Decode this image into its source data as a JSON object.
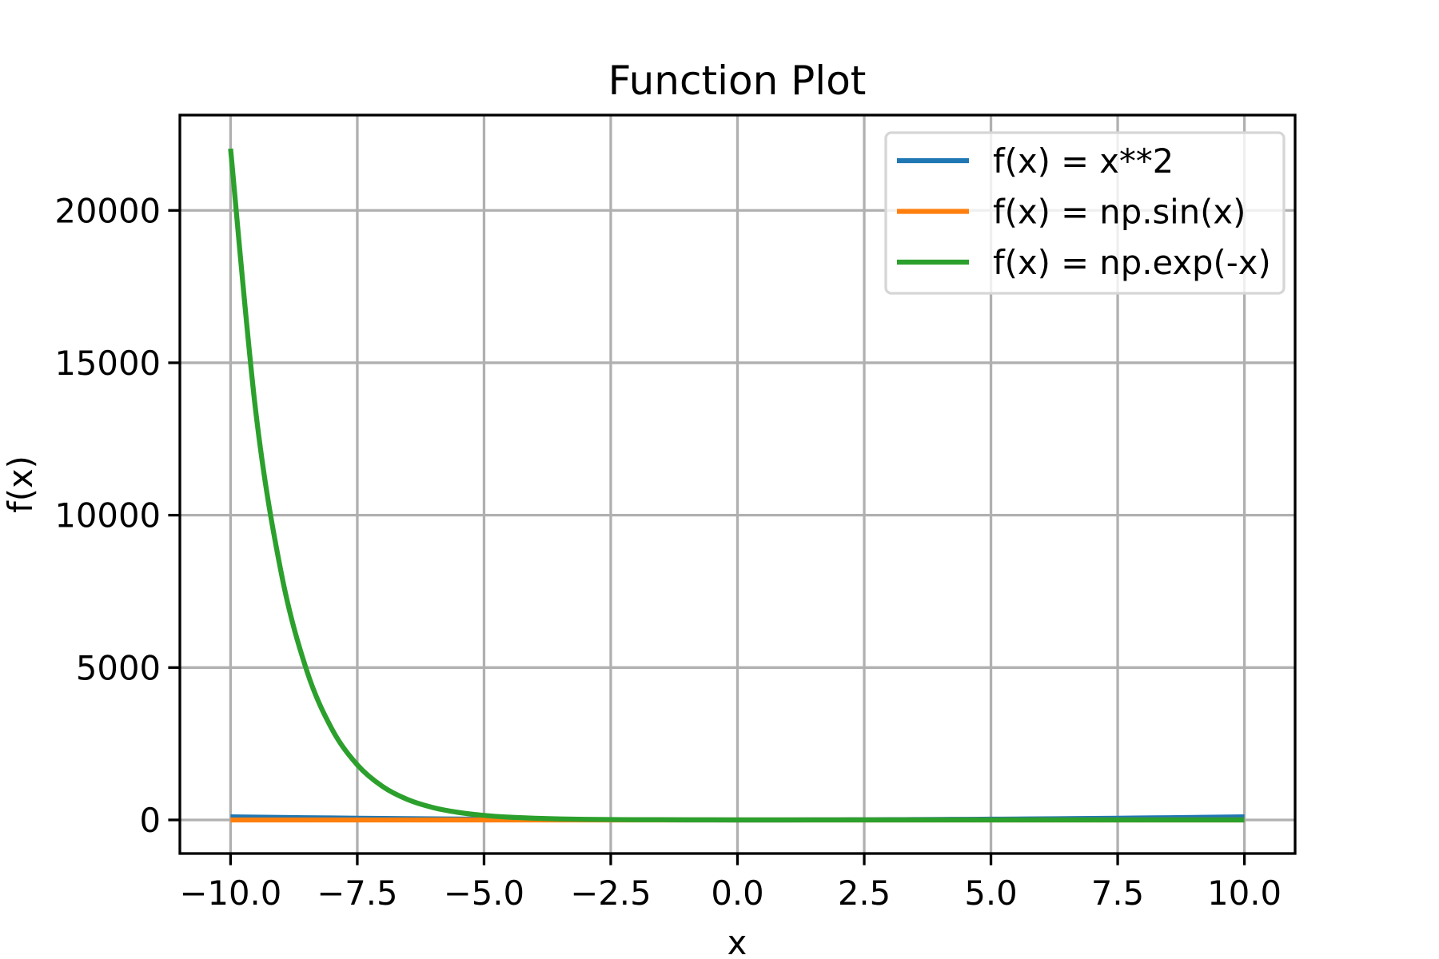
{
  "chart_data": {
    "type": "line",
    "title": "Function Plot",
    "xlabel": "x",
    "ylabel": "f(x)",
    "xlim": [
      -11,
      11
    ],
    "ylim": [
      -1102,
      23128
    ],
    "xticks": [
      -10,
      -7.5,
      -5,
      -2.5,
      0,
      2.5,
      5,
      7.5,
      10
    ],
    "xtick_labels": [
      "−10.0",
      "−7.5",
      "−5.0",
      "−2.5",
      "0.0",
      "2.5",
      "5.0",
      "7.5",
      "10.0"
    ],
    "yticks": [
      0,
      5000,
      10000,
      15000,
      20000
    ],
    "ytick_labels": [
      "0",
      "5000",
      "10000",
      "15000",
      "20000"
    ],
    "grid": true,
    "legend_position": "upper-right",
    "x": [
      -10,
      -9.5,
      -9,
      -8.5,
      -8,
      -7.5,
      -7,
      -6.5,
      -6,
      -5.5,
      -5,
      -4.5,
      -4,
      -3.5,
      -3,
      -2.5,
      -2,
      -1.5,
      -1,
      -0.5,
      0,
      0.5,
      1,
      1.5,
      2,
      2.5,
      3,
      3.5,
      4,
      4.5,
      5,
      5.5,
      6,
      6.5,
      7,
      7.5,
      8,
      8.5,
      9,
      9.5,
      10
    ],
    "series": [
      {
        "name": "f(x) = x**2",
        "color": "#1f77b4",
        "values": [
          100,
          90.25,
          81,
          72.25,
          64,
          56.25,
          49,
          42.25,
          36,
          30.25,
          25,
          20.25,
          16,
          12.25,
          9,
          6.25,
          4,
          2.25,
          1,
          0.25,
          0,
          0.25,
          1,
          2.25,
          4,
          6.25,
          9,
          12.25,
          16,
          20.25,
          25,
          30.25,
          36,
          42.25,
          49,
          56.25,
          64,
          72.25,
          81,
          90.25,
          100
        ]
      },
      {
        "name": "f(x) = np.sin(x)",
        "color": "#ff7f0e",
        "values": [
          0.544,
          0.075,
          -0.412,
          -0.798,
          -0.989,
          -0.938,
          -0.657,
          -0.215,
          0.279,
          0.706,
          0.959,
          0.978,
          0.757,
          0.351,
          -0.141,
          -0.598,
          -0.909,
          -0.997,
          -0.841,
          -0.479,
          0,
          0.479,
          0.841,
          0.997,
          0.909,
          0.598,
          0.141,
          -0.351,
          -0.757,
          -0.978,
          -0.959,
          -0.706,
          -0.279,
          0.215,
          0.657,
          0.938,
          0.989,
          0.798,
          0.412,
          -0.075,
          -0.544
        ]
      },
      {
        "name": "f(x) = np.exp(-x)",
        "color": "#2ca02c",
        "values": [
          22026.5,
          13359.7,
          8103.1,
          4914.8,
          2981.0,
          1808.0,
          1096.6,
          665.1,
          403.4,
          244.7,
          148.4,
          90.0,
          54.6,
          33.1,
          20.1,
          12.18,
          7.39,
          4.48,
          2.718,
          1.649,
          1,
          0.607,
          0.368,
          0.223,
          0.135,
          0.082,
          0.05,
          0.03,
          0.018,
          0.011,
          0.007,
          0.004,
          0.002,
          0.002,
          0.001,
          0.001,
          0,
          0,
          0,
          0,
          0
        ]
      }
    ]
  }
}
